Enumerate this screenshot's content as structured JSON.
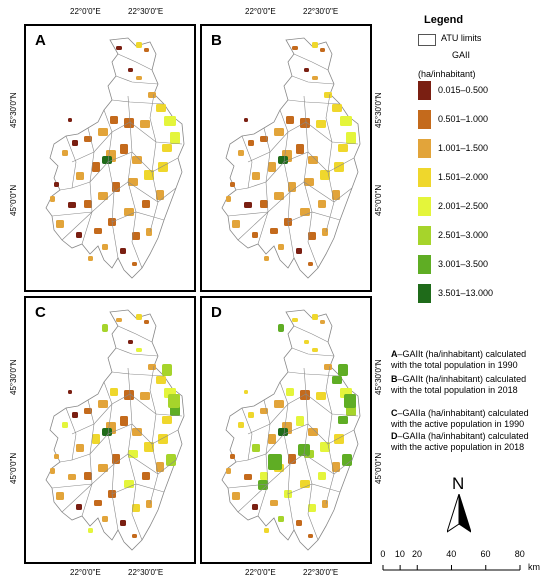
{
  "ticks": {
    "lon_1": "22°0'0\"E",
    "lon_2": "22°30'0\"E",
    "lat_1": "45°30'0\"N",
    "lat_2": "45°0'0\"N"
  },
  "panels": [
    {
      "label": "A"
    },
    {
      "label": "B"
    },
    {
      "label": "C"
    },
    {
      "label": "D"
    }
  ],
  "legend": {
    "title": "Legend",
    "atu_label": "ATU limits",
    "gaii_label": "GAII",
    "unit_label": "(ha/inhabitant)",
    "classes": [
      {
        "range": "0.015–0.500",
        "color": "#7a1f12"
      },
      {
        "range": "0.501–1.000",
        "color": "#c46a1c"
      },
      {
        "range": "1.001–1.500",
        "color": "#e2a43a"
      },
      {
        "range": "1.501–2.000",
        "color": "#efd72c"
      },
      {
        "range": "2.001–2.500",
        "color": "#e4f53b"
      },
      {
        "range": "2.501–3.000",
        "color": "#a6d42b"
      },
      {
        "range": "3.001–3.500",
        "color": "#5fad24"
      },
      {
        "range": "3.501–13.000",
        "color": "#1f6b1a"
      }
    ]
  },
  "descriptions": [
    {
      "key": "A",
      "line1": "–GAIIt (ha/inhabitant) calculated",
      "line2": "with the total population in 1990"
    },
    {
      "key": "B",
      "line1": "–GAIIt (ha/inhabitant) calculated",
      "line2": "with the total population in 2018"
    },
    {
      "key": "C",
      "line1": "–GAIIa (ha/inhabitant) calculated",
      "line2": "with the active population in 1990"
    },
    {
      "key": "D",
      "line1": "–GAIIa (ha/inhabitant) calculated",
      "line2": "with the active population in 2018"
    }
  ],
  "north_arrow": {
    "label": "N"
  },
  "scale_bar": {
    "labels": [
      "0",
      "10",
      "20",
      "40",
      "60",
      "80"
    ],
    "unit": "km"
  }
}
